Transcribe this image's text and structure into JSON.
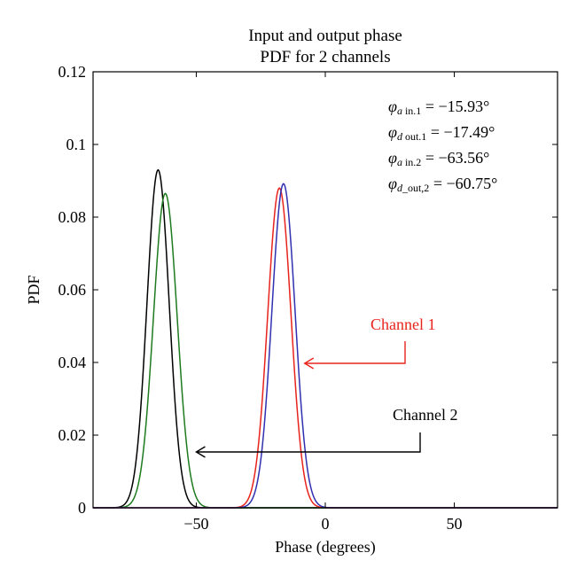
{
  "chart_data": {
    "type": "line",
    "title": "Input and output phase",
    "subtitle": "PDF for 2 channels",
    "xlabel": "Phase (degrees)",
    "ylabel": "PDF",
    "xlim": [
      -90,
      90
    ],
    "ylim": [
      0,
      0.12
    ],
    "x_ticks": [
      "−50",
      "0",
      "50"
    ],
    "x_tick_values": [
      -50,
      0,
      50
    ],
    "y_ticks": [
      "0",
      "0.02",
      "0.04",
      "0.06",
      "0.08",
      "0.1",
      "0.12"
    ],
    "y_tick_values": [
      0,
      0.02,
      0.04,
      0.06,
      0.08,
      0.1,
      0.12
    ],
    "grid": false,
    "series": [
      {
        "color": "#000000",
        "peak_x": -64.8,
        "peak_y": 0.093,
        "sigma": 4.3
      },
      {
        "color": "#1e7a1e",
        "peak_x": -62.0,
        "peak_y": 0.0865,
        "sigma": 4.6
      },
      {
        "color": "#e8231c",
        "peak_x": -17.8,
        "peak_y": 0.088,
        "sigma": 4.5
      },
      {
        "color": "#3030b0",
        "peak_x": -16.2,
        "peak_y": 0.0892,
        "sigma": 4.5
      }
    ],
    "annotations": [
      {
        "greek": "φ",
        "sub1": "a",
        "sub2": " in.1",
        "value": " = −15.93°"
      },
      {
        "greek": "φ",
        "sub1": "d",
        "sub2": " out.1",
        "value": " = −17.49°"
      },
      {
        "greek": "φ",
        "sub1": "a",
        "sub2": " in.2",
        "value": " = −63.56°"
      },
      {
        "greek": "φ",
        "sub1": "d_",
        "sub2": "out,2",
        "value": " = −60.75°"
      }
    ],
    "callouts": [
      {
        "label": "Channel 1",
        "color": "#e8231c",
        "arrow_x": -8
      },
      {
        "label": "Channel 2",
        "color": "#000000",
        "arrow_x": -50
      }
    ]
  }
}
